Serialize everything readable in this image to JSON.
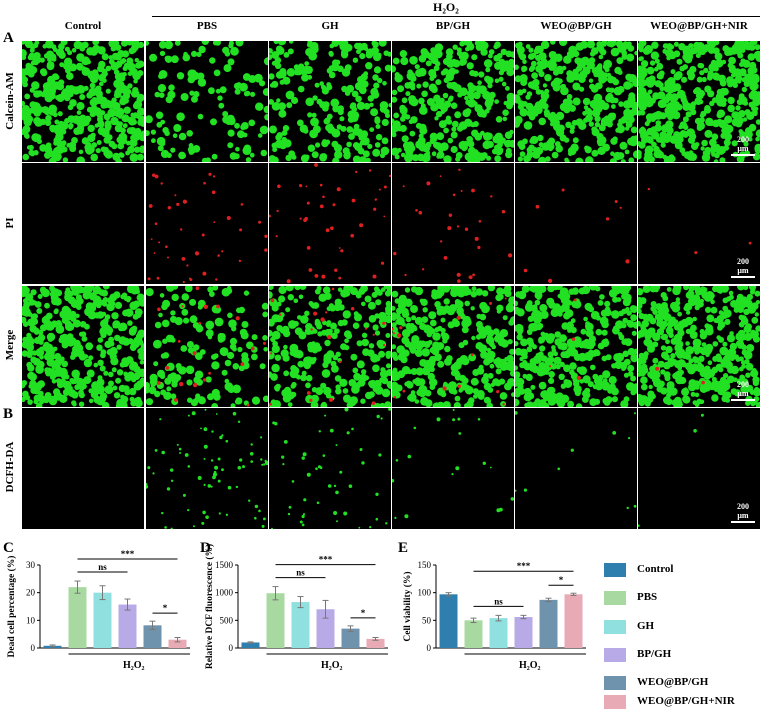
{
  "header": {
    "h2o2_group_label": "H₂O₂",
    "columns": [
      "Control",
      "PBS",
      "GH",
      "BP/GH",
      "WEO@BP/GH",
      "WEO@BP/GH+NIR"
    ]
  },
  "panel_letters": {
    "A": "A",
    "B": "B",
    "C": "C",
    "D": "D",
    "E": "E"
  },
  "rows": [
    {
      "label": "Calcein-AM",
      "stain_color": "#22e022",
      "densities": [
        1.0,
        0.3,
        0.55,
        0.72,
        0.82,
        0.98
      ],
      "scale_bar": "200 μm"
    },
    {
      "label": "PI",
      "stain_color": "#e02020",
      "densities": [
        0.0,
        0.25,
        0.25,
        0.18,
        0.05,
        0.02
      ],
      "scale_bar": "200 μm"
    },
    {
      "label": "Merge",
      "stain_color": "#22e022",
      "densities": [
        1.0,
        0.35,
        0.6,
        0.75,
        0.84,
        0.98
      ],
      "scale_bar": "200 μm"
    },
    {
      "label": "DCFH-DA",
      "stain_color": "#22e022",
      "densities": [
        0.0,
        0.45,
        0.3,
        0.12,
        0.06,
        0.02
      ],
      "scale_bar": "200 μm"
    }
  ],
  "legend": [
    {
      "label": "Control",
      "color": "#2f7fae"
    },
    {
      "label": "PBS",
      "color": "#a8d9a0"
    },
    {
      "label": "GH",
      "color": "#8fe0de"
    },
    {
      "label": "BP/GH",
      "color": "#b7aae6"
    },
    {
      "label": "WEO@BP/GH",
      "color": "#6f92ad"
    },
    {
      "label": "WEO@BP/GH+NIR",
      "color": "#e8aab4"
    }
  ],
  "chart_data": [
    {
      "type": "bar",
      "panel": "C",
      "categories": [
        "Control",
        "PBS",
        "GH",
        "BP/GH",
        "WEO@BP/GH",
        "WEO@BP/GH+NIR"
      ],
      "values": [
        0.8,
        22,
        20,
        15.7,
        8.2,
        3.0
      ],
      "errors": [
        0.3,
        2.2,
        2.5,
        2.0,
        1.5,
        0.8
      ],
      "ylabel": "Dead cell percentage (%)",
      "xlabel": "H₂O₂",
      "ylim": [
        0,
        30
      ],
      "yticks": [
        "0",
        "10",
        "20",
        "30"
      ],
      "annotations": [
        {
          "text": "ns",
          "from": "PBS",
          "to": "BP/GH"
        },
        {
          "text": "***",
          "from": "PBS",
          "to": "WEO@BP/GH+NIR"
        },
        {
          "text": "*",
          "from": "WEO@BP/GH",
          "to": "WEO@BP/GH+NIR"
        }
      ]
    },
    {
      "type": "bar",
      "panel": "D",
      "categories": [
        "Control",
        "PBS",
        "GH",
        "BP/GH",
        "WEO@BP/GH",
        "WEO@BP/GH+NIR"
      ],
      "values": [
        100,
        990,
        830,
        700,
        350,
        165
      ],
      "errors": [
        10,
        120,
        100,
        160,
        50,
        25
      ],
      "ylabel": "Relative DCF fluorescence (%)",
      "xlabel": "H₂O₂",
      "ylim": [
        0,
        1500
      ],
      "yticks": [
        "0",
        "500",
        "1000",
        "1500"
      ],
      "annotations": [
        {
          "text": "ns",
          "from": "PBS",
          "to": "BP/GH"
        },
        {
          "text": "***",
          "from": "PBS",
          "to": "WEO@BP/GH+NIR"
        },
        {
          "text": "*",
          "from": "WEO@BP/GH",
          "to": "WEO@BP/GH+NIR"
        }
      ]
    },
    {
      "type": "bar",
      "panel": "E",
      "categories": [
        "Control",
        "PBS",
        "GH",
        "BP/GH",
        "WEO@BP/GH",
        "WEO@BP/GH+NIR"
      ],
      "values": [
        97,
        50,
        54,
        56,
        87,
        97
      ],
      "errors": [
        3,
        4,
        5,
        3,
        3,
        2
      ],
      "ylabel": "Cell viability (%)",
      "xlabel": "H₂O₂",
      "ylim": [
        0,
        150
      ],
      "yticks": [
        "0",
        "50",
        "100",
        "150"
      ],
      "annotations": [
        {
          "text": "ns",
          "from": "PBS",
          "to": "BP/GH"
        },
        {
          "text": "***",
          "from": "PBS",
          "to": "WEO@BP/GH+NIR"
        },
        {
          "text": "*",
          "from": "WEO@BP/GH",
          "to": "WEO@BP/GH+NIR"
        }
      ]
    }
  ]
}
